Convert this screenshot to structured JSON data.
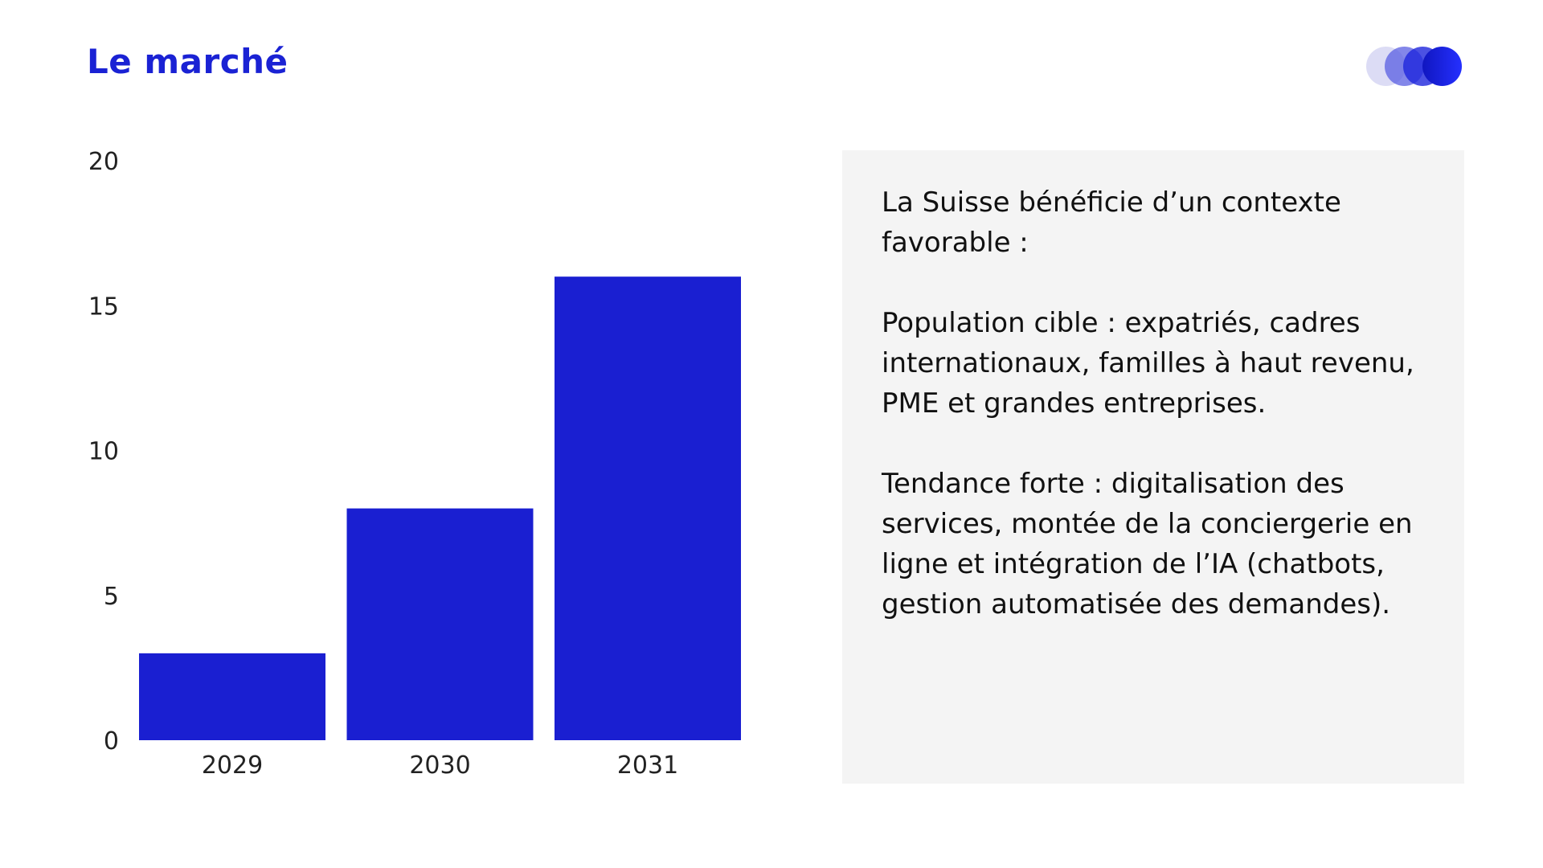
{
  "title": "Le marché",
  "colors": {
    "accent": "#1a1fd1",
    "panel_bg": "#f4f4f4"
  },
  "logo": {
    "icon": "overlapping-circles-logo",
    "colors": [
      "#dcdcf5",
      "#7f82e8",
      "#3e44e0",
      "#1a22e6"
    ]
  },
  "chart_data": {
    "type": "bar",
    "categories": [
      "2029",
      "2030",
      "2031"
    ],
    "values": [
      3,
      8,
      16
    ],
    "title": "",
    "xlabel": "",
    "ylabel": "",
    "ylim": [
      0,
      20
    ],
    "yticks": [
      "0",
      "5",
      "10",
      "15",
      "20"
    ],
    "grid": false,
    "bar_color": "#1a1fd1"
  },
  "panel": {
    "paragraphs": [
      "La Suisse bénéficie d’un contexte favorable :",
      "Population cible : expatriés, cadres internationaux, familles à haut revenu, PME et grandes entreprises.",
      "Tendance forte : digitalisation des services, montée de la conciergerie en ligne et intégration de l’IA (chatbots, gestion automatisée des demandes)."
    ]
  }
}
